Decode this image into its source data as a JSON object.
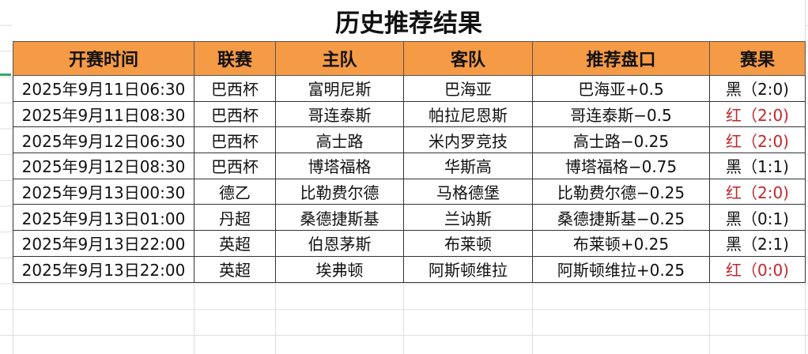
{
  "title": "历史推荐结果",
  "headers": [
    "开赛时间",
    "联赛",
    "主队",
    "客队",
    "推荐盘口",
    "赛果"
  ],
  "colors": {
    "header_bg": "#f59a45",
    "red_result": "#c0282d",
    "black_result": "#111111"
  },
  "rows": [
    {
      "time": "2025年9月11日06:30",
      "league": "巴西杯",
      "home": "富明尼斯",
      "away": "巴海亚",
      "pick": "巴海亚+0.5",
      "result": "黑（2:0)",
      "outcome": "black"
    },
    {
      "time": "2025年9月11日08:30",
      "league": "巴西杯",
      "home": "哥连泰斯",
      "away": "帕拉尼恩斯",
      "pick": "哥连泰斯−0.5",
      "result": "红（2:0)",
      "outcome": "red"
    },
    {
      "time": "2025年9月12日06:30",
      "league": "巴西杯",
      "home": "高士路",
      "away": "米内罗竞技",
      "pick": "高士路−0.25",
      "result": "红（2:0)",
      "outcome": "red"
    },
    {
      "time": "2025年9月12日08:30",
      "league": "巴西杯",
      "home": "博塔福格",
      "away": "华斯高",
      "pick": "博塔福格−0.75",
      "result": "黑（1:1)",
      "outcome": "black"
    },
    {
      "time": "2025年9月13日00:30",
      "league": "德乙",
      "home": "比勒费尔德",
      "away": "马格德堡",
      "pick": "比勒费尔德−0.25",
      "result": "红（2:0)",
      "outcome": "red"
    },
    {
      "time": "2025年9月13日01:00",
      "league": "丹超",
      "home": "桑德捷斯基",
      "away": "兰讷斯",
      "pick": "桑德捷斯基−0.25",
      "result": "黑（0:1)",
      "outcome": "black"
    },
    {
      "time": "2025年9月13日22:00",
      "league": "英超",
      "home": "伯恩茅斯",
      "away": "布莱顿",
      "pick": "布莱顿+0.25",
      "result": "黑（2:1)",
      "outcome": "black"
    },
    {
      "time": "2025年9月13日22:00",
      "league": "英超",
      "home": "埃弗顿",
      "away": "阿斯顿维拉",
      "pick": "阿斯顿维拉+0.25",
      "result": "红（0:0)",
      "outcome": "red"
    }
  ]
}
